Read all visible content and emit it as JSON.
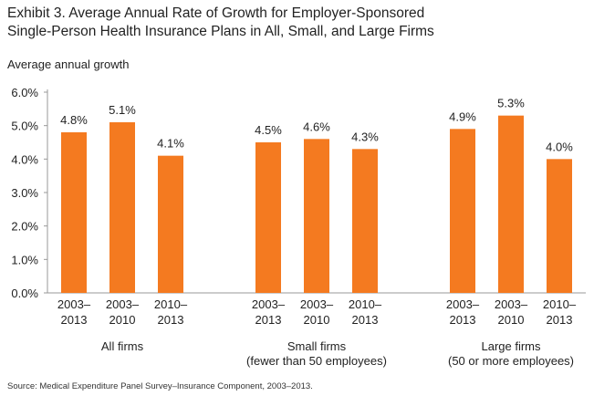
{
  "header": {
    "title_line1": "Exhibit 3. Average Annual Rate of Growth for Employer-Sponsored",
    "title_line2": "Single-Person Health Insurance Plans in All, Small, and Large Firms"
  },
  "footer": {
    "source": "Source: Medical Expenditure Panel Survey–Insurance Component, 2003–2013."
  },
  "colors": {
    "bar": "#F47A20",
    "axis": "#999999"
  },
  "chart_data": {
    "type": "bar",
    "ylabel": "Average annual growth",
    "ylim": [
      0,
      6
    ],
    "yticks": [
      "0.0%",
      "1.0%",
      "2.0%",
      "3.0%",
      "4.0%",
      "5.0%",
      "6.0%"
    ],
    "grid": false,
    "groups": [
      {
        "label_line1": "All firms",
        "label_line2": "",
        "bars": [
          {
            "period_line1": "2003–",
            "period_line2": "2013",
            "value": 4.8,
            "label": "4.8%"
          },
          {
            "period_line1": "2003–",
            "period_line2": "2010",
            "value": 5.1,
            "label": "5.1%"
          },
          {
            "period_line1": "2010–",
            "period_line2": "2013",
            "value": 4.1,
            "label": "4.1%"
          }
        ]
      },
      {
        "label_line1": "Small firms",
        "label_line2": "(fewer than 50 employees)",
        "bars": [
          {
            "period_line1": "2003–",
            "period_line2": "2013",
            "value": 4.5,
            "label": "4.5%"
          },
          {
            "period_line1": "2003–",
            "period_line2": "2010",
            "value": 4.6,
            "label": "4.6%"
          },
          {
            "period_line1": "2010–",
            "period_line2": "2013",
            "value": 4.3,
            "label": "4.3%"
          }
        ]
      },
      {
        "label_line1": "Large firms",
        "label_line2": "(50 or more employees)",
        "bars": [
          {
            "period_line1": "2003–",
            "period_line2": "2013",
            "value": 4.9,
            "label": "4.9%"
          },
          {
            "period_line1": "2003–",
            "period_line2": "2010",
            "value": 5.3,
            "label": "5.3%"
          },
          {
            "period_line1": "2010–",
            "period_line2": "2013",
            "value": 4.0,
            "label": "4.0%"
          }
        ]
      }
    ]
  }
}
